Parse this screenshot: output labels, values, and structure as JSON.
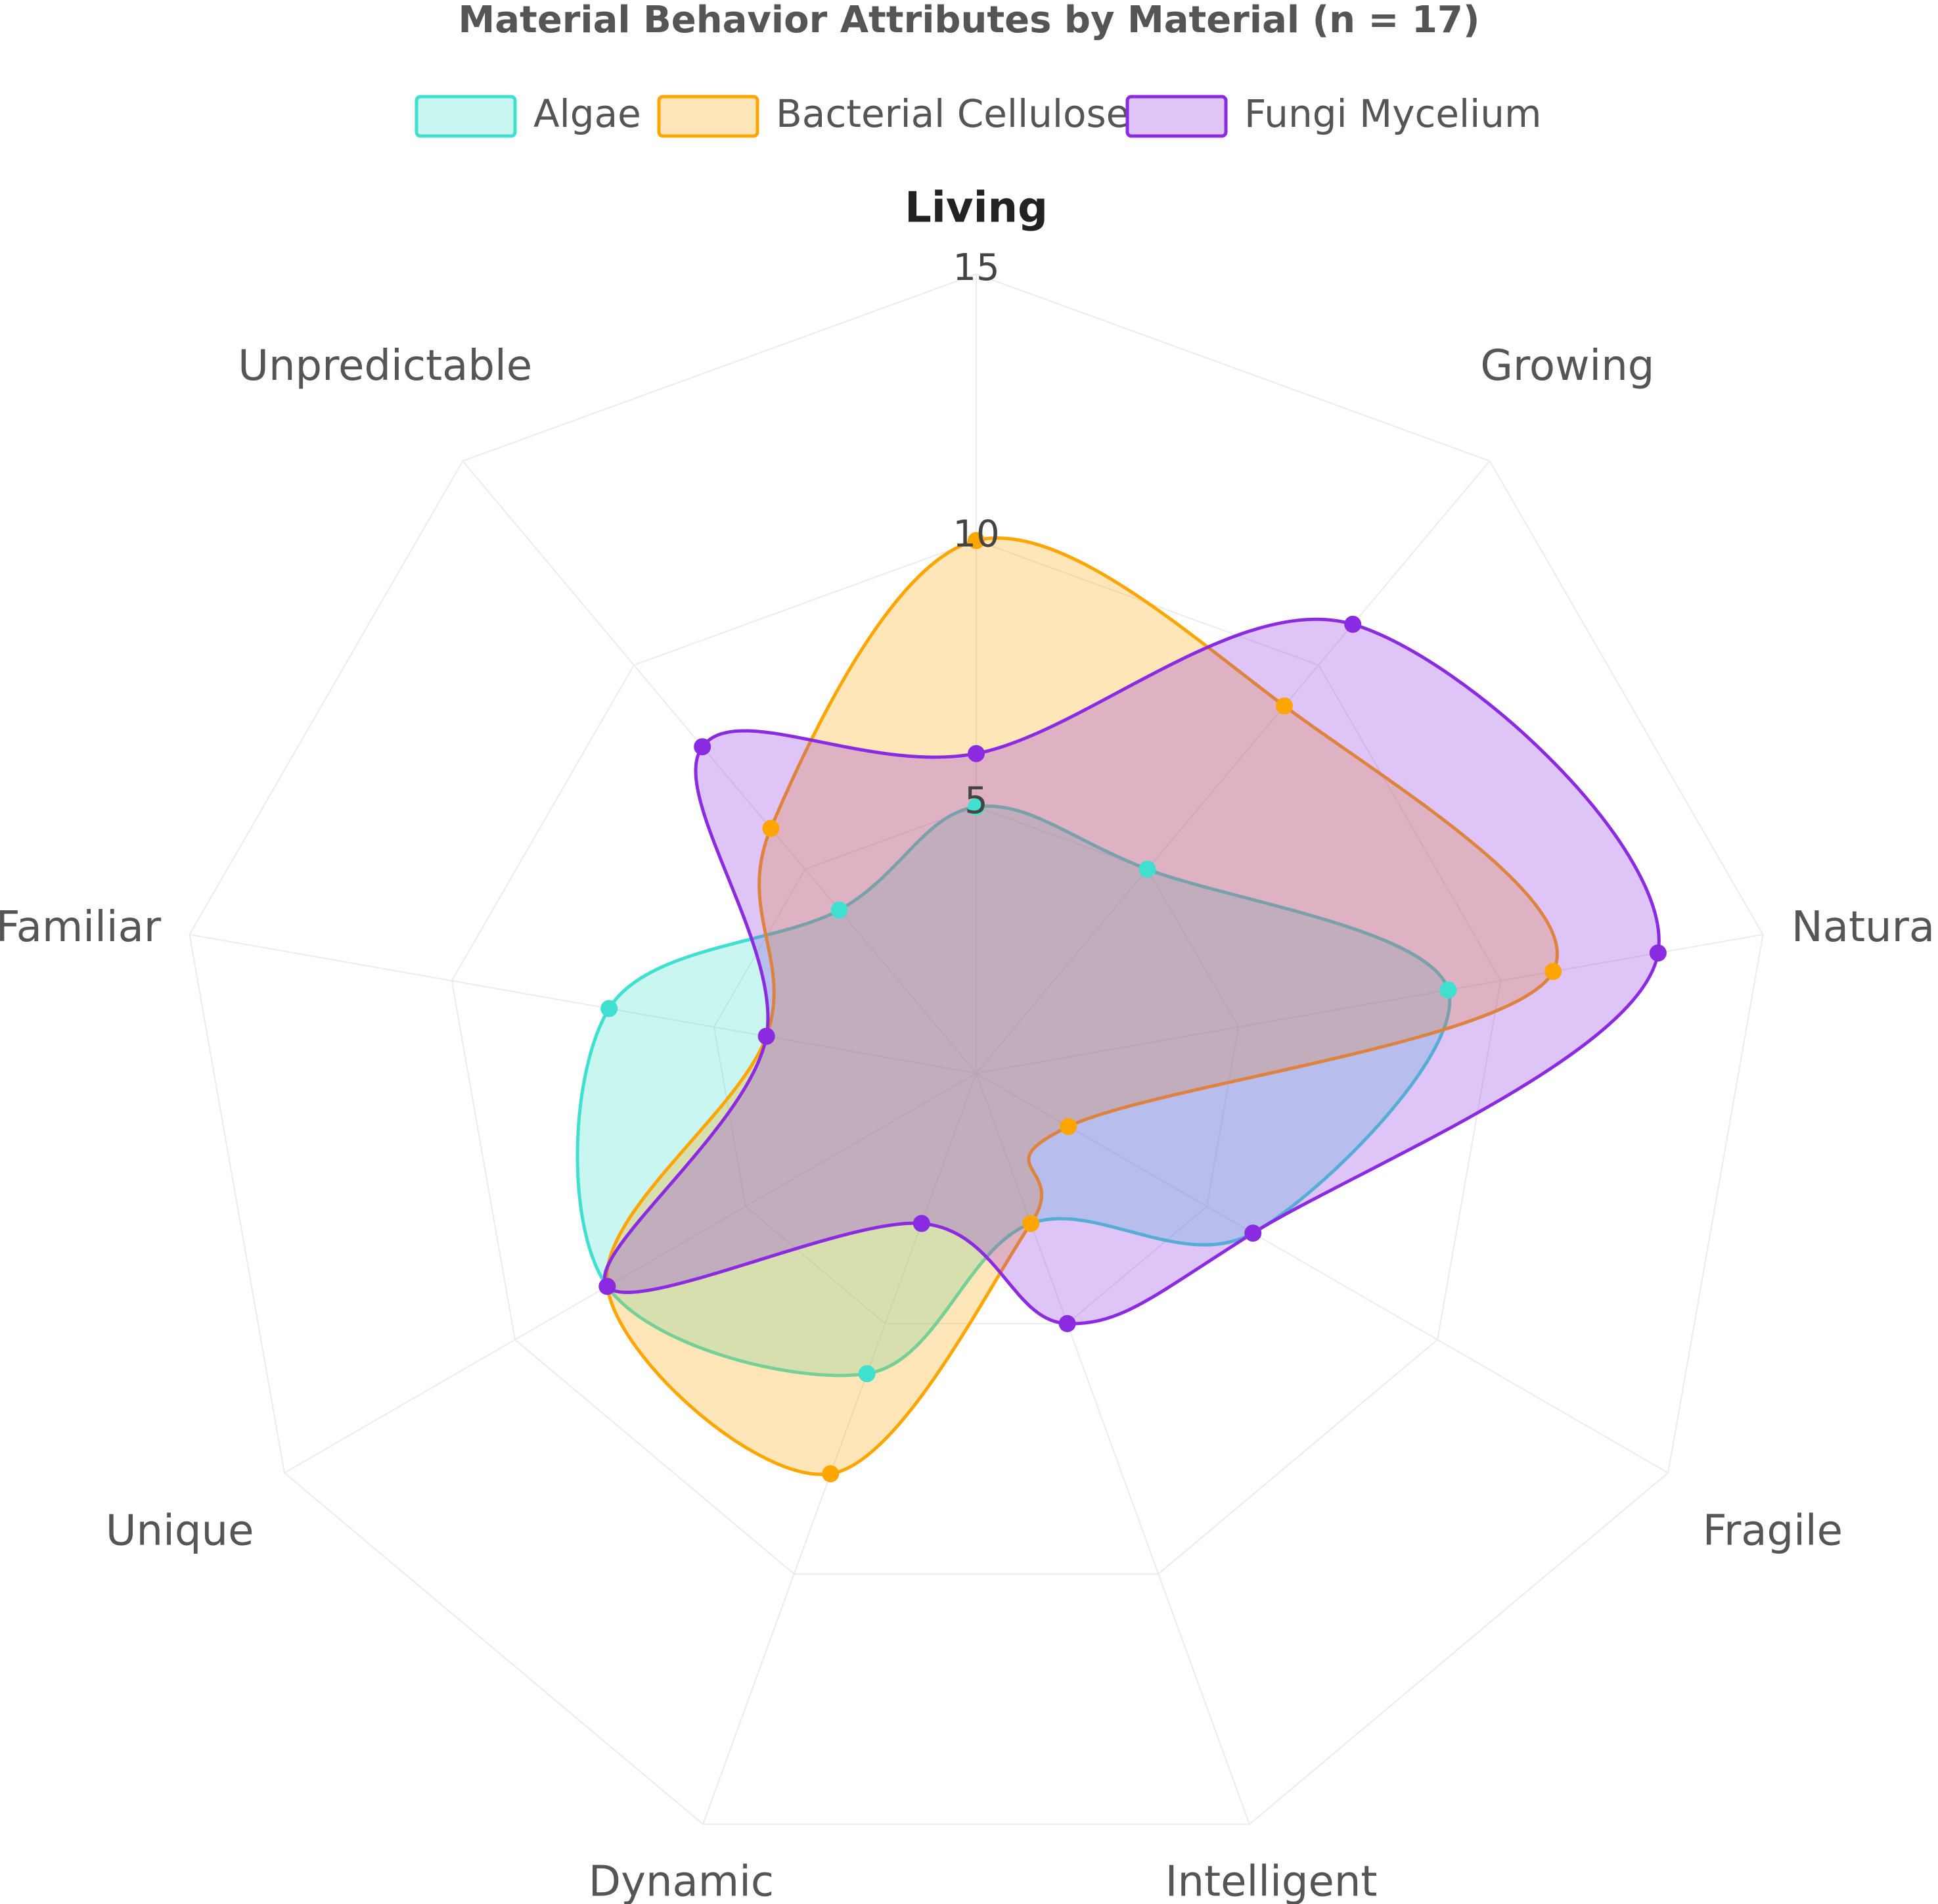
{
  "chart_data": {
    "type": "radar",
    "title": "Material Behavior Attributes by Material (n = 17)",
    "categories": [
      "Living",
      "Growing",
      "Natural",
      "Fragile",
      "Intelligent",
      "Dynamic",
      "Unique",
      "Familiar",
      "Unpredictable"
    ],
    "series": [
      {
        "name": "Algae",
        "color": "#40e0d0",
        "values": [
          5,
          5,
          9,
          6,
          3,
          6,
          8,
          7,
          4
        ]
      },
      {
        "name": "Bacterial Cellulose",
        "color": "#ffa500",
        "values": [
          10,
          9,
          11,
          2,
          3,
          8,
          8,
          4,
          6
        ]
      },
      {
        "name": "Fungi Mycelium",
        "color": "#8a2be2",
        "values": [
          6,
          11,
          13,
          6,
          5,
          3,
          8,
          4,
          8
        ]
      }
    ],
    "rlim": [
      0,
      15
    ],
    "rticks": [
      5,
      10,
      15
    ],
    "grid": true,
    "smooth": true,
    "legend": "top"
  }
}
